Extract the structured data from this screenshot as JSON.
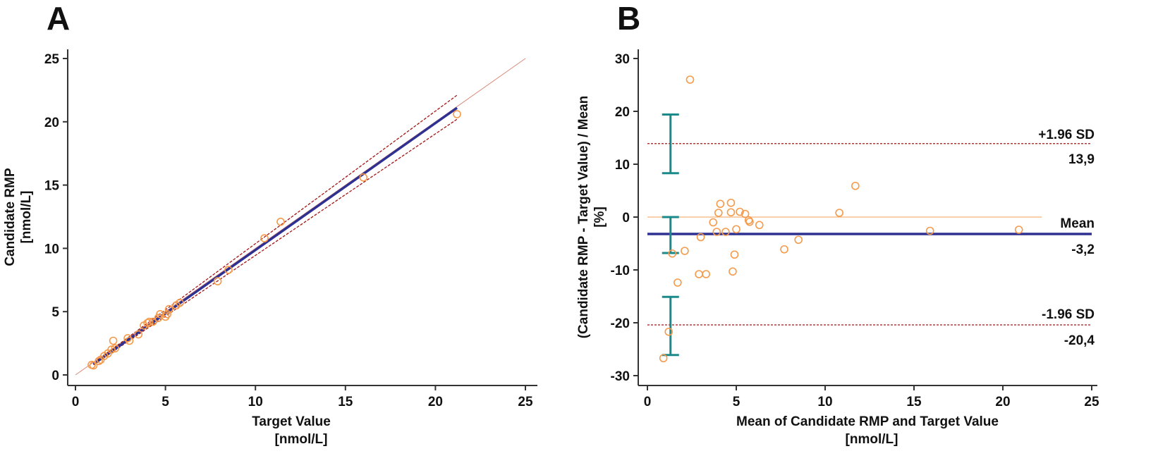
{
  "chart_data": [
    {
      "panel": "A",
      "type": "scatter",
      "xlabel": "Target Value",
      "xlabel_unit": "[nmol/L]",
      "ylabel": "Candidate RMP",
      "ylabel_unit": "[nmol/L]",
      "xlim": [
        0,
        25
      ],
      "ylim": [
        0,
        25
      ],
      "xticks": [
        0,
        5,
        10,
        15,
        20,
        25
      ],
      "yticks": [
        0,
        5,
        10,
        15,
        20,
        25
      ],
      "grid": false,
      "points": [
        {
          "x": 0.9,
          "y": 0.8
        },
        {
          "x": 1.0,
          "y": 0.75
        },
        {
          "x": 1.3,
          "y": 1.1
        },
        {
          "x": 1.4,
          "y": 1.2
        },
        {
          "x": 1.6,
          "y": 1.5
        },
        {
          "x": 1.8,
          "y": 1.7
        },
        {
          "x": 2.0,
          "y": 2.0
        },
        {
          "x": 2.1,
          "y": 2.7
        },
        {
          "x": 2.2,
          "y": 2.1
        },
        {
          "x": 2.9,
          "y": 2.9
        },
        {
          "x": 3.0,
          "y": 2.7
        },
        {
          "x": 3.5,
          "y": 3.2
        },
        {
          "x": 3.8,
          "y": 3.9
        },
        {
          "x": 4.0,
          "y": 4.1
        },
        {
          "x": 4.1,
          "y": 4.2
        },
        {
          "x": 4.3,
          "y": 4.2
        },
        {
          "x": 4.6,
          "y": 4.5
        },
        {
          "x": 4.7,
          "y": 4.8
        },
        {
          "x": 5.0,
          "y": 4.6
        },
        {
          "x": 5.1,
          "y": 4.8
        },
        {
          "x": 5.2,
          "y": 5.2
        },
        {
          "x": 5.6,
          "y": 5.5
        },
        {
          "x": 5.8,
          "y": 5.7
        },
        {
          "x": 7.9,
          "y": 7.4
        },
        {
          "x": 8.5,
          "y": 8.3
        },
        {
          "x": 10.5,
          "y": 10.8
        },
        {
          "x": 11.4,
          "y": 12.1
        },
        {
          "x": 16.0,
          "y": 15.6
        },
        {
          "x": 21.2,
          "y": 20.6
        }
      ],
      "identity_line": {
        "x": [
          0,
          25
        ],
        "y": [
          0,
          25
        ]
      },
      "regression_line": {
        "x": [
          1.0,
          21.2
        ],
        "y": [
          0.85,
          21.1
        ]
      },
      "ci_upper": {
        "x": [
          1.0,
          21.2
        ],
        "y": [
          0.95,
          22.1
        ]
      },
      "ci_lower": {
        "x": [
          1.0,
          21.2
        ],
        "y": [
          0.8,
          20.2
        ]
      }
    },
    {
      "panel": "B",
      "type": "scatter",
      "xlabel": "Mean of Candidate RMP and Target Value",
      "xlabel_unit": "[nmol/L]",
      "ylabel": "(Candidate RMP - Target Value) / Mean",
      "ylabel_unit": "[%]",
      "xlim": [
        0,
        25
      ],
      "ylim": [
        -30,
        30
      ],
      "xticks": [
        0,
        5,
        10,
        15,
        20,
        25
      ],
      "yticks": [
        -30,
        -20,
        -10,
        0,
        10,
        20,
        30
      ],
      "grid": false,
      "points": [
        {
          "x": 0.9,
          "y": -26.7
        },
        {
          "x": 1.2,
          "y": -21.7
        },
        {
          "x": 1.4,
          "y": -6.9
        },
        {
          "x": 1.7,
          "y": -12.4
        },
        {
          "x": 2.1,
          "y": -6.4
        },
        {
          "x": 2.4,
          "y": 26.0
        },
        {
          "x": 2.9,
          "y": -10.8
        },
        {
          "x": 3.0,
          "y": -3.8
        },
        {
          "x": 3.3,
          "y": -10.8
        },
        {
          "x": 3.7,
          "y": -1.0
        },
        {
          "x": 3.9,
          "y": -2.8
        },
        {
          "x": 4.0,
          "y": 0.8
        },
        {
          "x": 4.1,
          "y": 2.5
        },
        {
          "x": 4.4,
          "y": -2.8
        },
        {
          "x": 4.7,
          "y": 0.9
        },
        {
          "x": 4.7,
          "y": 2.7
        },
        {
          "x": 4.8,
          "y": -10.3
        },
        {
          "x": 4.9,
          "y": -7.1
        },
        {
          "x": 5.0,
          "y": -2.3
        },
        {
          "x": 5.2,
          "y": 1.0
        },
        {
          "x": 5.5,
          "y": 0.6
        },
        {
          "x": 5.7,
          "y": -0.6
        },
        {
          "x": 5.75,
          "y": -0.9
        },
        {
          "x": 6.3,
          "y": -1.5
        },
        {
          "x": 7.7,
          "y": -6.1
        },
        {
          "x": 8.5,
          "y": -4.3
        },
        {
          "x": 10.8,
          "y": 0.8
        },
        {
          "x": 11.7,
          "y": 5.9
        },
        {
          "x": 15.9,
          "y": -2.6
        },
        {
          "x": 20.9,
          "y": -2.4
        }
      ],
      "zero_line": {
        "x": [
          0,
          22.2
        ],
        "y": 0
      },
      "mean": {
        "value": -3.2,
        "label": "Mean",
        "value_label": "-3,2"
      },
      "upper_loa": {
        "value": 13.9,
        "label": "+1.96 SD",
        "value_label": "13,9"
      },
      "lower_loa": {
        "value": -20.4,
        "label": "-1.96 SD",
        "value_label": "-20,4"
      },
      "ci_bars": [
        {
          "level": "upper_loa",
          "low": 8.3,
          "high": 19.4
        },
        {
          "level": "mean",
          "low": -6.8,
          "high": 0.0
        },
        {
          "level": "lower_loa",
          "low": -26.1,
          "high": -15.1
        }
      ],
      "ci_bar_x": 1.3
    }
  ],
  "colors": {
    "point": "#f59a4a",
    "regression": "#2e3192",
    "ci_dash": "#a31515",
    "identity": "#d88a7a",
    "zero_line": "#f5b47a",
    "ci_bar": "#1a8a8a",
    "axis": "#333333"
  }
}
